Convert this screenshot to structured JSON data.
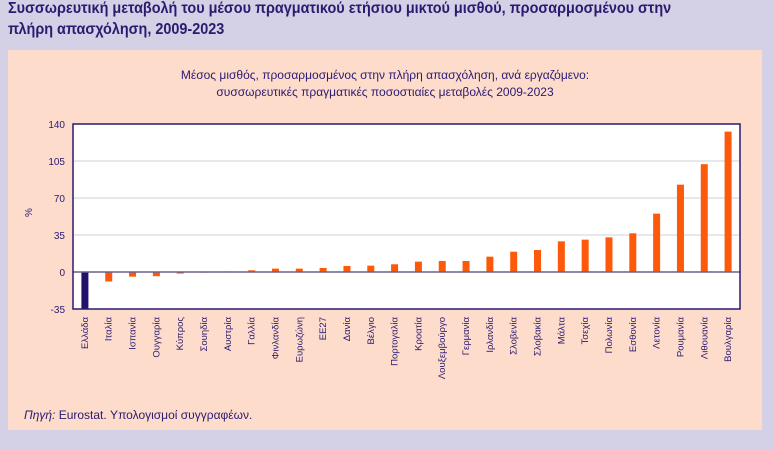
{
  "title": "Συσσωρευτική μεταβολή του μέσου πραγματικού ετήσιου μικτού μισθού, προσαρμοσμένου στην πλήρη απασχόληση, 2009-2023",
  "source_label": "Πηγή:",
  "source_text": "Eurostat. Υπολογισμοί συγγραφέων.",
  "chart_data": {
    "type": "bar",
    "title": "Μέσος μισθός, προσαρμοσμένος στην πλήρη απασχόληση, ανά εργαζόμενο:",
    "subtitle": "συσσωρευτικές πραγματικές ποσοστιαίες μεταβολές 2009-2023",
    "ylabel": "%",
    "xlabel": "",
    "ylim": [
      -35,
      140
    ],
    "yticks": [
      -35,
      0,
      35,
      70,
      105,
      140
    ],
    "grid": true,
    "categories": [
      "Ελλάδα",
      "Ιταλία",
      "Ισπανία",
      "Ουγγαρία",
      "Κύπρος",
      "Σουηδία",
      "Αυστρία",
      "Γαλλία",
      "Φινλανδία",
      "Ευρωζώνη",
      "ΕΕ27",
      "Δανία",
      "Βέλγιο",
      "Πορτογαλία",
      "Κροατία",
      "Λουξεμβούργο",
      "Γερμανία",
      "Ιρλανδία",
      "Σλοβενία",
      "Σλοβακία",
      "Μάλτα",
      "Τσεχία",
      "Πολωνία",
      "Εσθονία",
      "Λετονία",
      "Ρουμανία",
      "Λιθουανία",
      "Βουλγαρία"
    ],
    "values": [
      -35.0,
      -9.0,
      -4.4,
      -4.0,
      -1.5,
      -0.5,
      0.5,
      1.6,
      3.2,
      3.2,
      3.8,
      5.7,
      6.0,
      7.3,
      9.8,
      10.4,
      10.4,
      14.5,
      19.2,
      20.8,
      29.0,
      30.6,
      32.8,
      36.6,
      55.2,
      82.6,
      102.0,
      132.8
    ],
    "colors": {
      "highlight": "#22106a",
      "default": "#fc5a0a",
      "grid": "#d0d0d8",
      "axis": "#2b1a6f"
    }
  }
}
